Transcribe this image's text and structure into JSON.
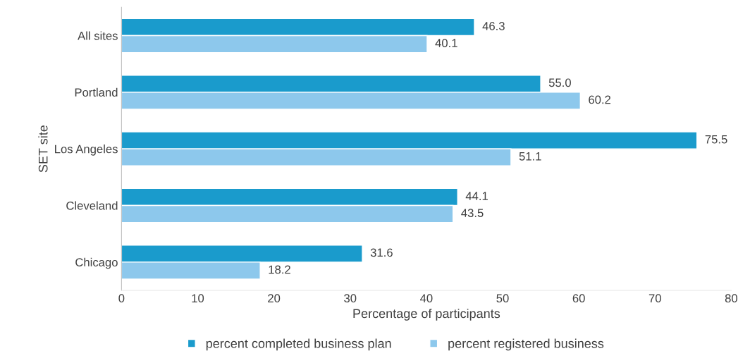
{
  "chart_data": {
    "type": "bar",
    "orientation": "horizontal",
    "xlabel": "Percentage of participants",
    "ylabel": "SET site",
    "categories": [
      "All sites",
      "Portland",
      "Los Angeles",
      "Cleveland",
      "Chicago"
    ],
    "series": [
      {
        "name": "percent completed business plan",
        "color": "#1a9bcc",
        "values": [
          46.3,
          55,
          75.5,
          44.1,
          31.6
        ],
        "value_labels": [
          "46.3",
          "55.0",
          "75.5",
          "44.1",
          "31.6"
        ]
      },
      {
        "name": "percent registered business",
        "color": "#8dc8ec",
        "values": [
          40.1,
          60.2,
          51.1,
          43.5,
          18.2
        ],
        "value_labels": [
          "40.1",
          "60.2",
          "51.1",
          "43.5",
          "18.2"
        ]
      }
    ],
    "xlim": [
      0,
      80
    ],
    "xticks": [
      0,
      10,
      20,
      30,
      40,
      50,
      60,
      70,
      80
    ],
    "legend": "bottom",
    "grid": false
  }
}
